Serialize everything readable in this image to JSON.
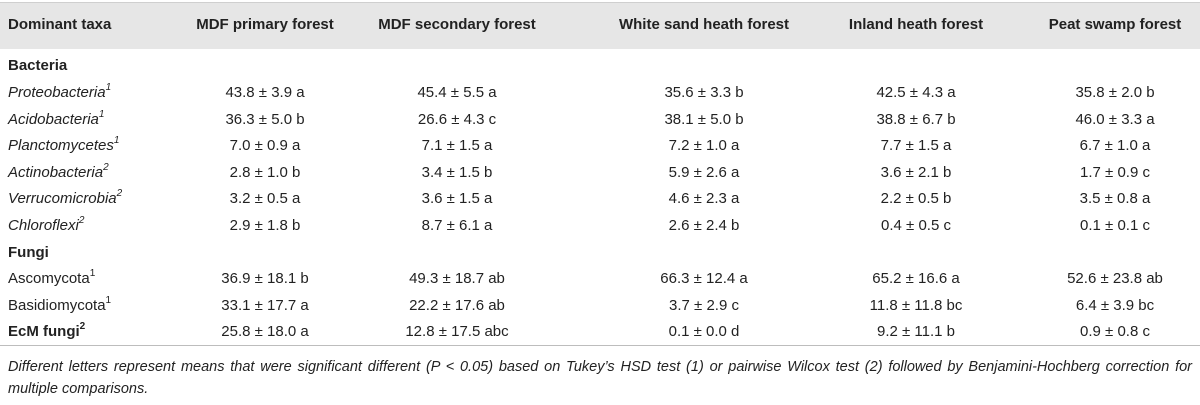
{
  "table": {
    "header": [
      "Dominant taxa",
      "MDF primary forest",
      "MDF secondary forest",
      "White sand heath forest",
      "Inland heath forest",
      "Peat swamp forest"
    ],
    "sections": [
      {
        "title": "Bacteria",
        "italic": true,
        "rows": [
          {
            "taxon": "Proteobacteria",
            "sup": "1",
            "cells": [
              "43.8 ± 3.9 a",
              "45.4 ± 5.5 a",
              "35.6 ± 3.3 b",
              "42.5 ± 4.3 a",
              "35.8 ± 2.0 b"
            ]
          },
          {
            "taxon": "Acidobacteria",
            "sup": "1",
            "cells": [
              "36.3 ± 5.0 b",
              "26.6 ± 4.3 c",
              "38.1 ± 5.0 b",
              "38.8 ± 6.7 b",
              "46.0 ± 3.3 a"
            ]
          },
          {
            "taxon": "Planctomycetes",
            "sup": "1",
            "cells": [
              "7.0 ± 0.9 a",
              "7.1 ± 1.5 a",
              "7.2 ± 1.0 a",
              "7.7 ± 1.5 a",
              "6.7 ± 1.0 a"
            ]
          },
          {
            "taxon": "Actinobacteria",
            "sup": "2",
            "cells": [
              "2.8 ± 1.0 b",
              "3.4 ± 1.5 b",
              "5.9 ± 2.6 a",
              "3.6 ± 2.1 b",
              "1.7 ± 0.9 c"
            ]
          },
          {
            "taxon": "Verrucomicrobia",
            "sup": "2",
            "cells": [
              "3.2 ± 0.5 a",
              "3.6 ± 1.5 a",
              "4.6 ± 2.3 a",
              "2.2 ± 0.5 b",
              "3.5 ± 0.8 a"
            ]
          },
          {
            "taxon": "Chloroflexi",
            "sup": "2",
            "cells": [
              "2.9 ± 1.8 b",
              "8.7 ± 6.1 a",
              "2.6 ± 2.4 b",
              "0.4 ± 0.5 c",
              "0.1 ± 0.1 c"
            ]
          }
        ]
      },
      {
        "title": "Fungi",
        "italic": false,
        "rows": [
          {
            "taxon": "Ascomycota",
            "sup": "1",
            "cells": [
              "36.9 ± 18.1 b",
              "49.3 ± 18.7 ab",
              "66.3 ± 12.4 a",
              "65.2 ± 16.6 a",
              "52.6 ± 23.8 ab"
            ]
          },
          {
            "taxon": "Basidiomycota",
            "sup": "1",
            "cells": [
              "33.1 ± 17.7 a",
              "22.2 ± 17.6 ab",
              "3.7 ± 2.9 c",
              "11.8 ± 11.8 bc",
              "6.4 ± 3.9 bc"
            ]
          },
          {
            "taxon": "EcM fungi",
            "sup": "2",
            "bold": true,
            "cells": [
              "25.8 ± 18.0 a",
              "12.8 ± 17.5 abc",
              "0.1 ± 0.0 d",
              "9.2 ± 11.1 b",
              "0.9 ± 0.8 c"
            ]
          }
        ]
      }
    ]
  },
  "footnote": "Different letters represent means that were significant different (P < 0.05) based on Tukey’s HSD test (1) or pairwise Wilcox test (2) followed by Benjamini-Hochberg correction for multiple comparisons."
}
